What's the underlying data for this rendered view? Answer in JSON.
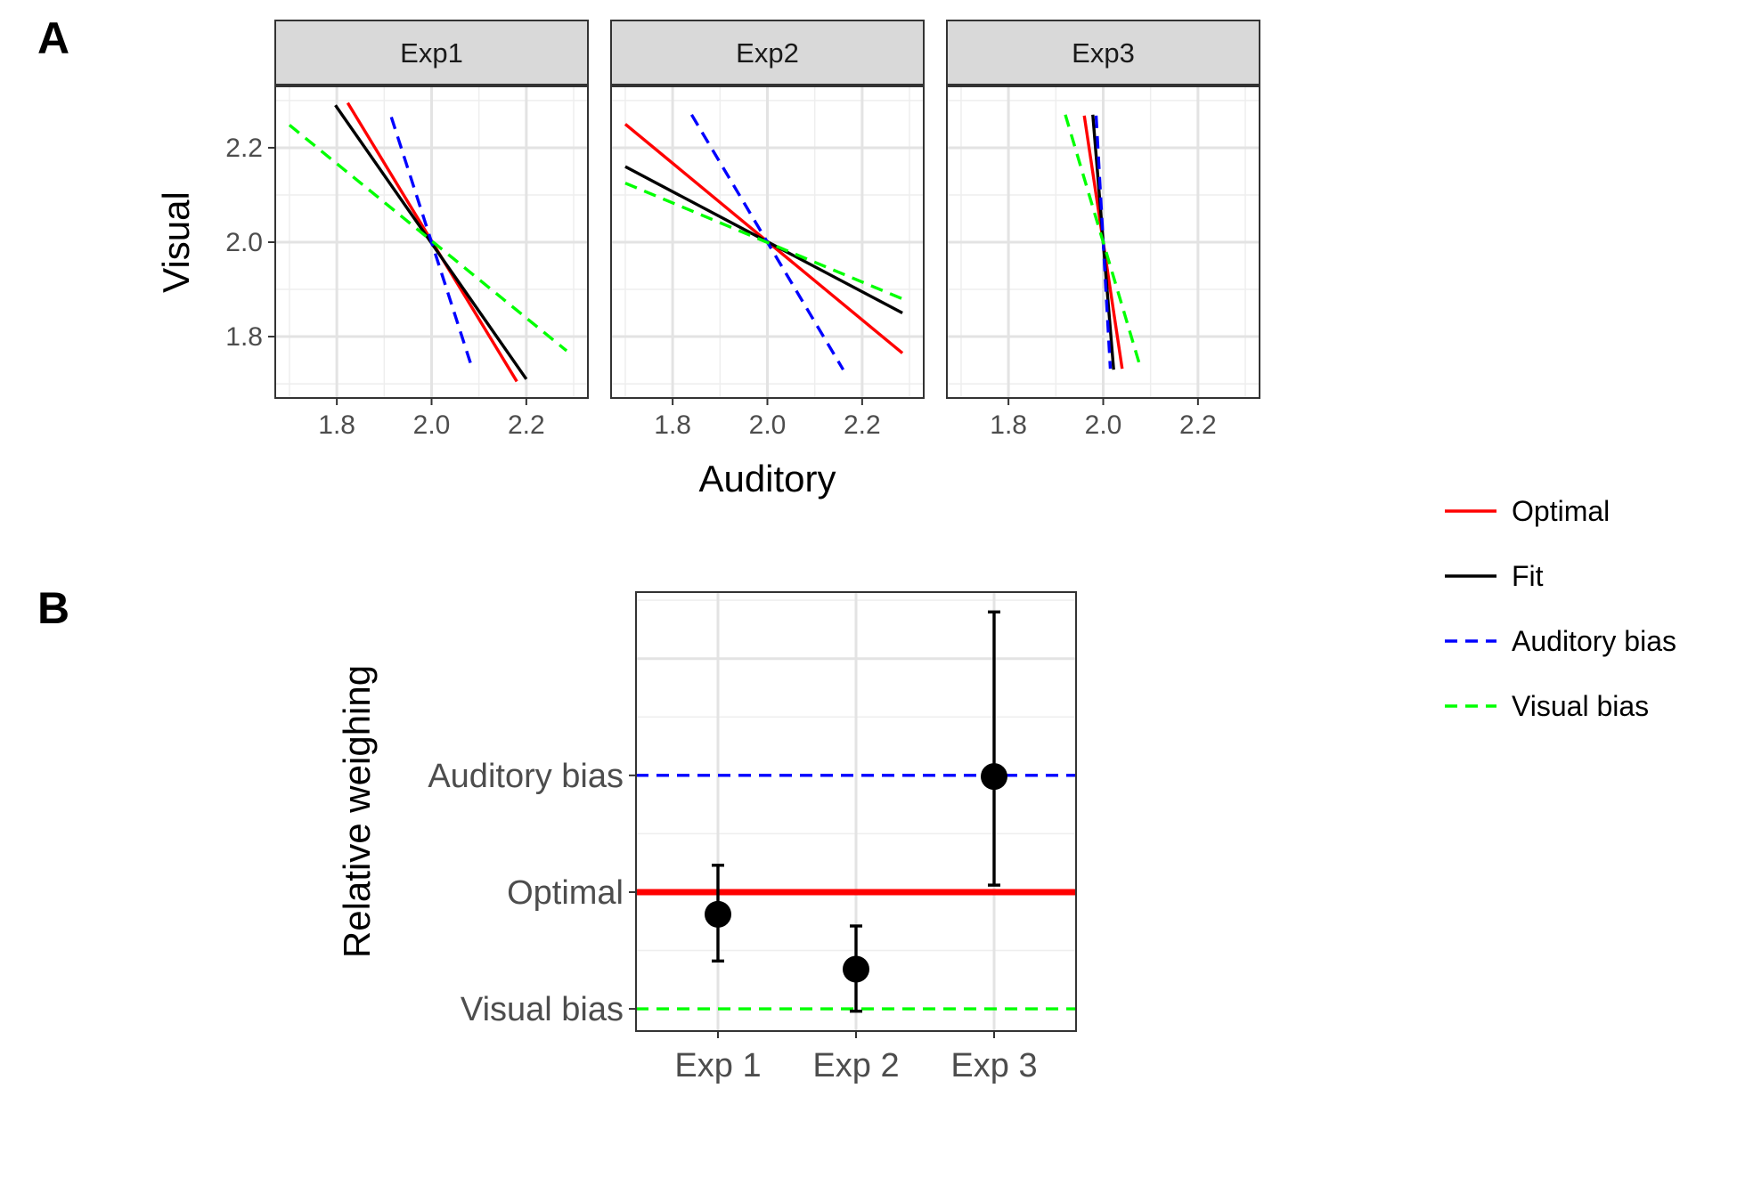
{
  "panel_labels": [
    "A",
    "B"
  ],
  "legend": {
    "entries": [
      {
        "label": "Optimal",
        "color": "#ff0000",
        "dash": "solid"
      },
      {
        "label": "Fit",
        "color": "#000000",
        "dash": "solid"
      },
      {
        "label": "Auditory bias",
        "color": "#0000ff",
        "dash": "dashed"
      },
      {
        "label": "Visual bias",
        "color": "#00ff00",
        "dash": "dashed"
      }
    ]
  },
  "chart_data": [
    {
      "type": "line",
      "panel": "A",
      "facets": [
        "Exp1",
        "Exp2",
        "Exp3"
      ],
      "xlabel": "Auditory",
      "ylabel": "Visual",
      "xlim": [
        1.67,
        2.33
      ],
      "ylim": [
        1.67,
        2.33
      ],
      "x_ticks": [
        "1.8",
        "2.0",
        "2.2"
      ],
      "y_ticks": [
        "1.8",
        "2.0",
        "2.2"
      ],
      "grid": true,
      "series": [
        {
          "facet": "Exp1",
          "name": "Optimal",
          "points": [
            [
              1.823,
              2.295
            ],
            [
              2.18,
              1.705
            ]
          ]
        },
        {
          "facet": "Exp1",
          "name": "Fit",
          "points": [
            [
              1.797,
              2.29
            ],
            [
              2.2,
              1.71
            ]
          ]
        },
        {
          "facet": "Exp1",
          "name": "Auditory bias",
          "points": [
            [
              1.915,
              2.265
            ],
            [
              2.085,
              1.735
            ]
          ]
        },
        {
          "facet": "Exp1",
          "name": "Visual bias",
          "points": [
            [
              1.7,
              2.248
            ],
            [
              2.285,
              1.77
            ]
          ]
        },
        {
          "facet": "Exp2",
          "name": "Optimal",
          "points": [
            [
              1.7,
              2.25
            ],
            [
              2.285,
              1.765
            ]
          ]
        },
        {
          "facet": "Exp2",
          "name": "Fit",
          "points": [
            [
              1.7,
              2.16
            ],
            [
              2.285,
              1.85
            ]
          ]
        },
        {
          "facet": "Exp2",
          "name": "Auditory bias",
          "points": [
            [
              1.84,
              2.27
            ],
            [
              2.16,
              1.73
            ]
          ]
        },
        {
          "facet": "Exp2",
          "name": "Visual bias",
          "points": [
            [
              1.7,
              2.125
            ],
            [
              2.285,
              1.88
            ]
          ]
        },
        {
          "facet": "Exp3",
          "name": "Optimal",
          "points": [
            [
              1.96,
              2.268
            ],
            [
              2.04,
              1.732
            ]
          ]
        },
        {
          "facet": "Exp3",
          "name": "Fit",
          "points": [
            [
              1.978,
              2.27
            ],
            [
              2.022,
              1.73
            ]
          ]
        },
        {
          "facet": "Exp3",
          "name": "Auditory bias",
          "points": [
            [
              1.985,
              2.268
            ],
            [
              2.015,
              1.732
            ]
          ]
        },
        {
          "facet": "Exp3",
          "name": "Visual bias",
          "points": [
            [
              1.92,
              2.27
            ],
            [
              2.08,
              1.73
            ]
          ]
        }
      ]
    },
    {
      "type": "scatter",
      "panel": "B",
      "xlabel": "",
      "ylabel": "Relative weighing",
      "categories": [
        "Exp 1",
        "Exp 2",
        "Exp 3"
      ],
      "y_ticks": [
        {
          "label": "Visual bias",
          "value": 0
        },
        {
          "label": "Optimal",
          "value": 1
        },
        {
          "label": "Auditory bias",
          "value": 2
        }
      ],
      "ylim": [
        -0.19,
        3.57
      ],
      "grid": true,
      "points": [
        {
          "category": "Exp 1",
          "y": 0.81,
          "ymin": 0.41,
          "ymax": 1.23
        },
        {
          "category": "Exp 2",
          "y": 0.34,
          "ymin": -0.02,
          "ymax": 0.71
        },
        {
          "category": "Exp 3",
          "y": 1.99,
          "ymin": 1.06,
          "ymax": 3.4
        }
      ],
      "reference_lines": [
        {
          "name": "Optimal",
          "y": 1,
          "color": "#ff0000",
          "dash": "solid"
        },
        {
          "name": "Auditory bias",
          "y": 2,
          "color": "#0000ff",
          "dash": "dashed"
        },
        {
          "name": "Visual bias",
          "y": 0,
          "color": "#00ff00",
          "dash": "dashed"
        }
      ]
    }
  ]
}
